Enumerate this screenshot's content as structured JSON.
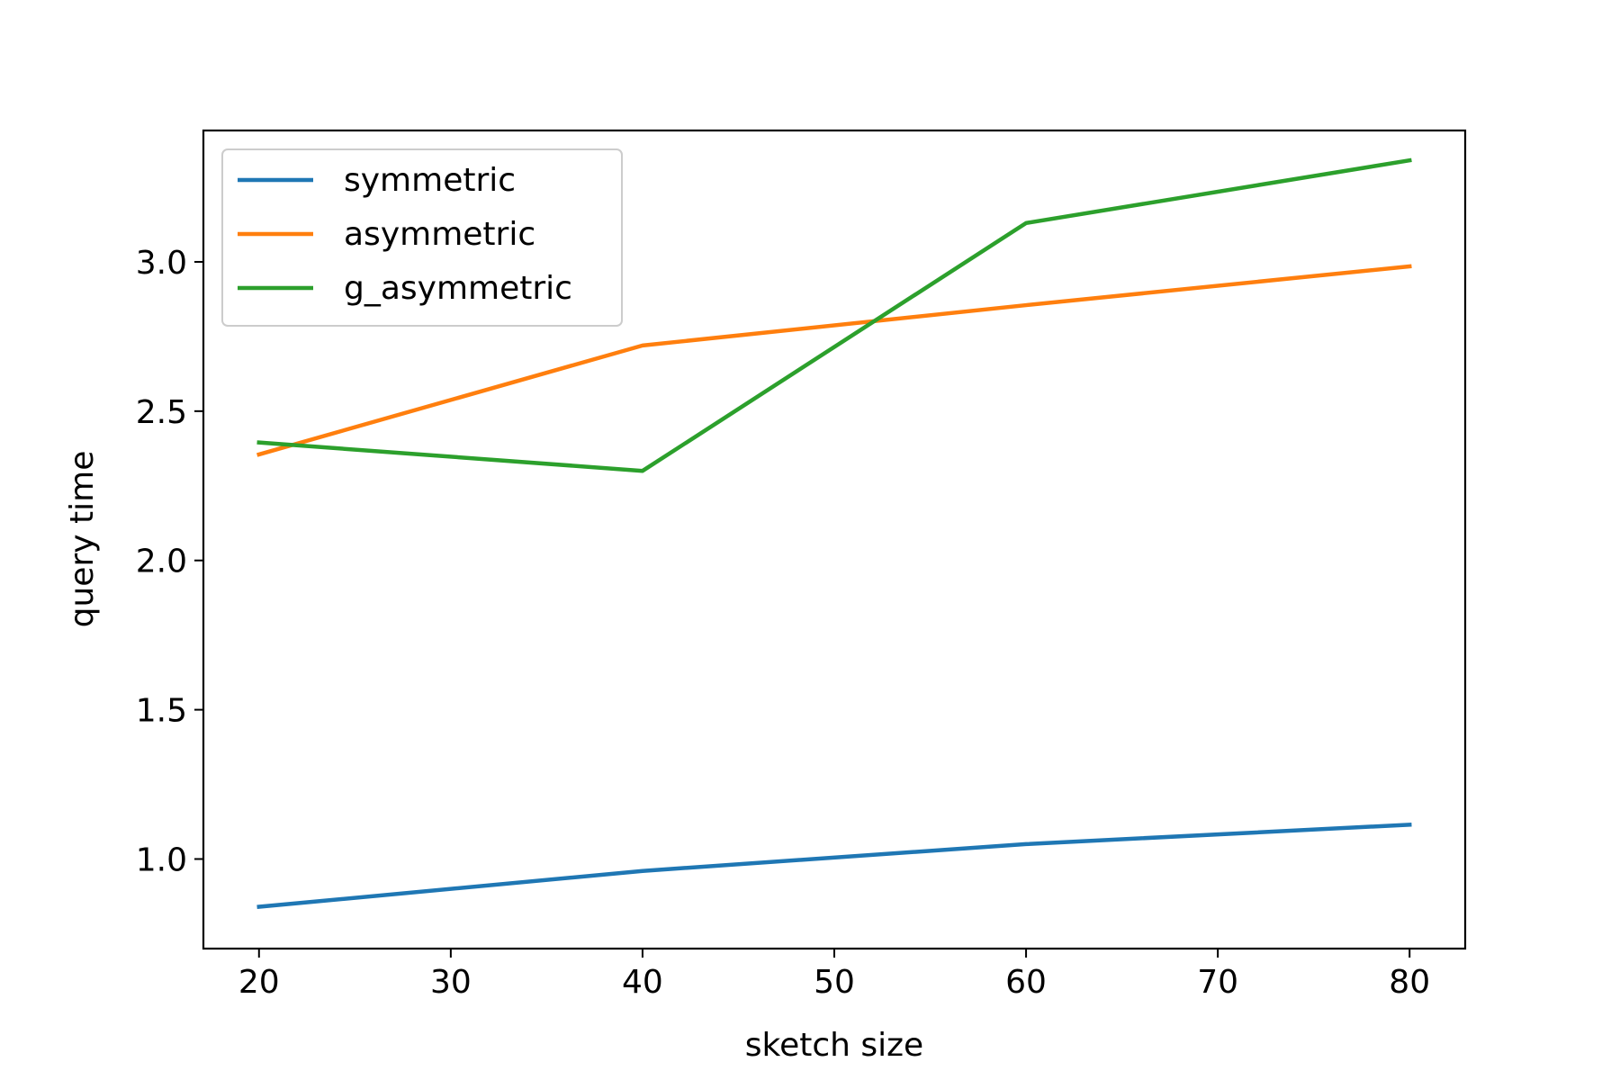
{
  "chart_data": {
    "type": "line",
    "title": "",
    "xlabel": "sketch size",
    "ylabel": "query time",
    "x": [
      20,
      40,
      60,
      80
    ],
    "series": [
      {
        "name": "symmetric",
        "color": "#1f77b4",
        "values": [
          0.84,
          0.96,
          1.05,
          1.115
        ]
      },
      {
        "name": "asymmetric",
        "color": "#ff7f0e",
        "values": [
          2.355,
          2.72,
          2.855,
          2.985
        ]
      },
      {
        "name": "g_asymmetric",
        "color": "#2ca02c",
        "values": [
          2.395,
          2.3,
          3.13,
          3.34
        ]
      }
    ],
    "xlim": [
      17.1,
      82.9
    ],
    "ylim": [
      0.7,
      3.44
    ],
    "xticks": [
      20,
      30,
      40,
      50,
      60,
      70,
      80
    ],
    "xtick_labels": [
      "20",
      "30",
      "40",
      "50",
      "60",
      "70",
      "80"
    ],
    "yticks": [
      1.0,
      1.5,
      2.0,
      2.5,
      3.0
    ],
    "ytick_labels": [
      "1.0",
      "1.5",
      "2.0",
      "2.5",
      "3.0"
    ],
    "grid": false,
    "legend_position": "top-left"
  }
}
